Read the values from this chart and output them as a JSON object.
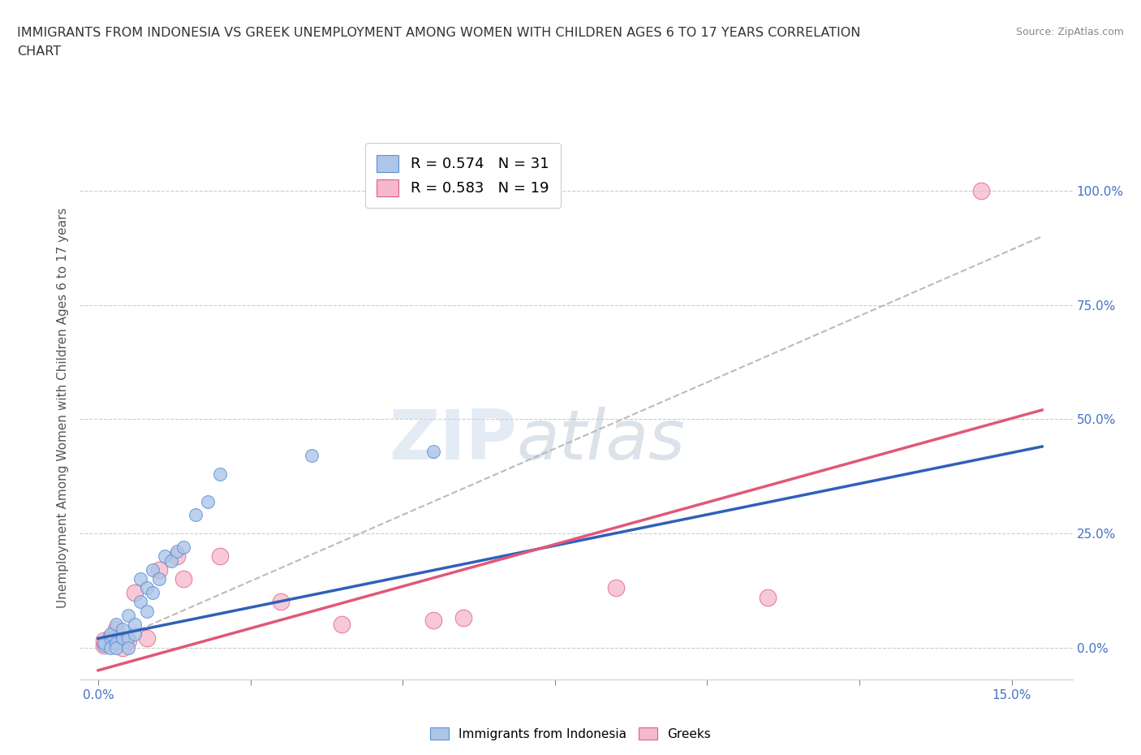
{
  "title_line1": "IMMIGRANTS FROM INDONESIA VS GREEK UNEMPLOYMENT AMONG WOMEN WITH CHILDREN AGES 6 TO 17 YEARS CORRELATION",
  "title_line2": "CHART",
  "source": "Source: ZipAtlas.com",
  "xlabel_ticks": [
    0.0,
    0.025,
    0.05,
    0.075,
    0.1,
    0.125,
    0.15
  ],
  "xlabel_labels": [
    "0.0%",
    "",
    "",
    "",
    "",
    "",
    "15.0%"
  ],
  "ylabel_ticks": [
    0.0,
    0.25,
    0.5,
    0.75,
    1.0
  ],
  "ylabel_labels": [
    "0.0%",
    "25.0%",
    "50.0%",
    "75.0%",
    "100.0%"
  ],
  "xlim": [
    -0.003,
    0.16
  ],
  "ylim": [
    -0.07,
    1.12
  ],
  "ylabel": "Unemployment Among Women with Children Ages 6 to 17 years",
  "blue_R": 0.574,
  "blue_N": 31,
  "pink_R": 0.583,
  "pink_N": 19,
  "blue_scatter_color": "#adc6e8",
  "blue_edge_color": "#5b8fd4",
  "pink_scatter_color": "#f5b8cc",
  "pink_edge_color": "#e06080",
  "blue_line_color": "#3060b8",
  "pink_line_color": "#e05878",
  "gray_dash_color": "#aaaaaa",
  "watermark": "ZIPatlas",
  "blue_scatter_x": [
    0.001,
    0.001,
    0.002,
    0.002,
    0.002,
    0.003,
    0.003,
    0.003,
    0.004,
    0.004,
    0.005,
    0.005,
    0.005,
    0.006,
    0.006,
    0.007,
    0.007,
    0.008,
    0.008,
    0.009,
    0.009,
    0.01,
    0.011,
    0.012,
    0.013,
    0.014,
    0.016,
    0.018,
    0.02,
    0.035,
    0.055
  ],
  "blue_scatter_y": [
    0.005,
    0.01,
    0.02,
    0.0,
    0.03,
    0.01,
    0.05,
    0.0,
    0.02,
    0.04,
    0.02,
    0.07,
    0.0,
    0.03,
    0.05,
    0.1,
    0.15,
    0.08,
    0.13,
    0.12,
    0.17,
    0.15,
    0.2,
    0.19,
    0.21,
    0.22,
    0.29,
    0.32,
    0.38,
    0.42,
    0.43
  ],
  "pink_scatter_x": [
    0.001,
    0.001,
    0.002,
    0.003,
    0.004,
    0.005,
    0.006,
    0.008,
    0.01,
    0.013,
    0.014,
    0.02,
    0.03,
    0.04,
    0.055,
    0.06,
    0.085,
    0.11,
    0.145
  ],
  "pink_scatter_y": [
    0.005,
    0.015,
    0.02,
    0.04,
    0.0,
    0.015,
    0.12,
    0.02,
    0.17,
    0.2,
    0.15,
    0.2,
    0.1,
    0.05,
    0.06,
    0.065,
    0.13,
    0.11,
    1.0
  ],
  "blue_trend_x": [
    0.0,
    0.155
  ],
  "blue_trend_y": [
    0.02,
    0.44
  ],
  "pink_trend_x": [
    0.0,
    0.155
  ],
  "pink_trend_y": [
    -0.05,
    0.52
  ],
  "gray_trend_x": [
    0.0,
    0.155
  ],
  "gray_trend_y": [
    0.0,
    0.9
  ]
}
